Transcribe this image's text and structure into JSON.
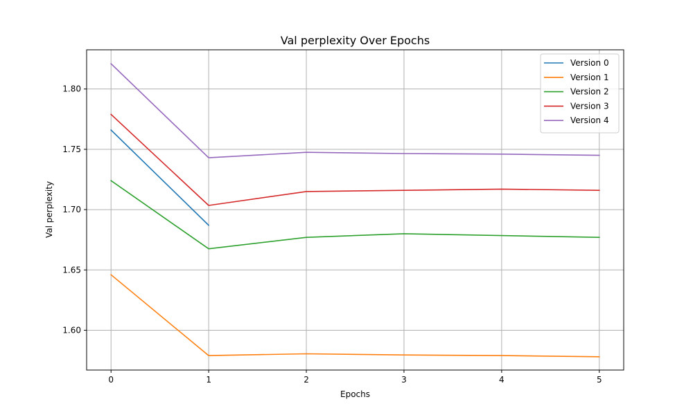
{
  "chart_data": {
    "type": "line",
    "title": "Val perplexity Over Epochs",
    "xlabel": "Epochs",
    "ylabel": "Val perplexity",
    "x": [
      0,
      1,
      2,
      3,
      4,
      5
    ],
    "xlim": [
      -0.25,
      5.25
    ],
    "ylim": [
      1.567,
      1.8325
    ],
    "xticks": [
      0,
      1,
      2,
      3,
      4,
      5
    ],
    "yticks": [
      1.6,
      1.65,
      1.7,
      1.75,
      1.8
    ],
    "ytick_labels": [
      "1.60",
      "1.65",
      "1.70",
      "1.75",
      "1.80"
    ],
    "grid": true,
    "legend_position": "top-right",
    "series": [
      {
        "name": "Version 0",
        "color": "#1f77b4",
        "values": [
          1.766,
          1.687,
          null,
          null,
          null,
          null
        ]
      },
      {
        "name": "Version 1",
        "color": "#ff7f0e",
        "values": [
          1.646,
          1.579,
          1.5805,
          1.5795,
          1.579,
          1.578
        ]
      },
      {
        "name": "Version 2",
        "color": "#2ca02c",
        "values": [
          1.724,
          1.6675,
          1.677,
          1.68,
          1.6785,
          1.677
        ]
      },
      {
        "name": "Version 3",
        "color": "#d62728",
        "values": [
          1.779,
          1.7035,
          1.715,
          1.716,
          1.717,
          1.716
        ]
      },
      {
        "name": "Version 4",
        "color": "#9467bd",
        "values": [
          1.821,
          1.743,
          1.7475,
          1.7465,
          1.746,
          1.745
        ]
      }
    ]
  }
}
